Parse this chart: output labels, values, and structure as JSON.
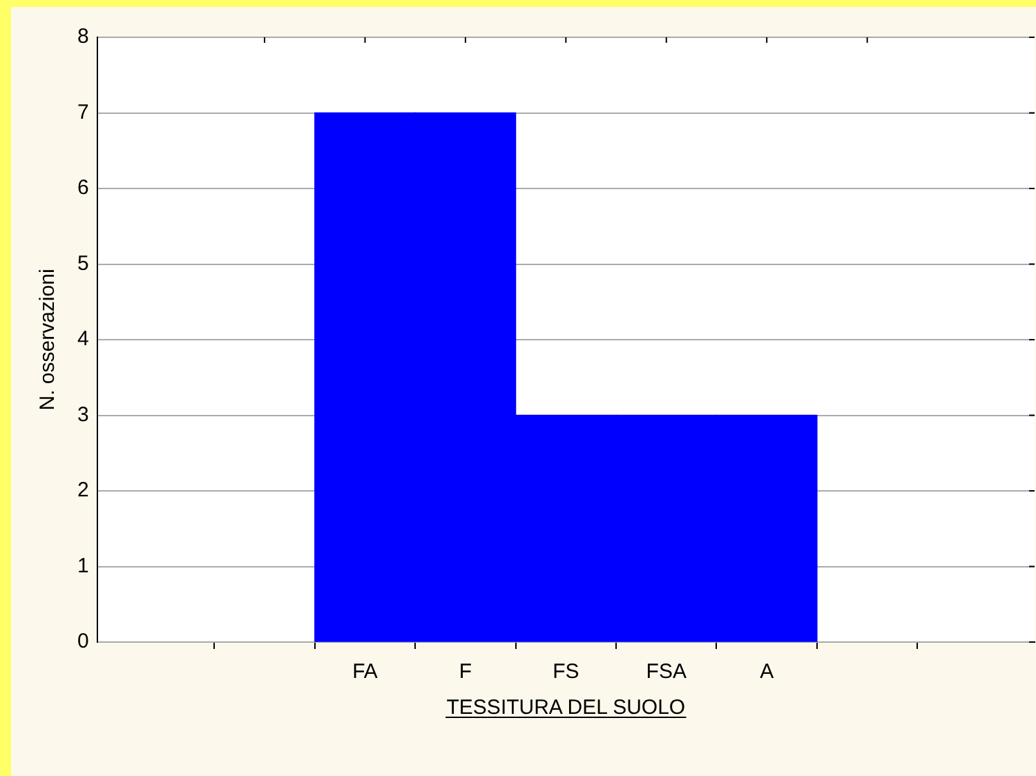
{
  "chart_data": {
    "type": "bar",
    "xlabel": "TESSITURA DEL SUOLO",
    "ylabel": "N. osservazioni",
    "categories": [
      null,
      "FA",
      "F",
      "FS",
      "FSA",
      "A",
      null
    ],
    "values": [
      null,
      7,
      7,
      3,
      3,
      3,
      null
    ],
    "color": "#0000ff",
    "ylim": [
      0,
      8
    ],
    "yticks": [
      0,
      1,
      2,
      3,
      4,
      5,
      6,
      7,
      8
    ],
    "grid": "y",
    "legend": false
  }
}
